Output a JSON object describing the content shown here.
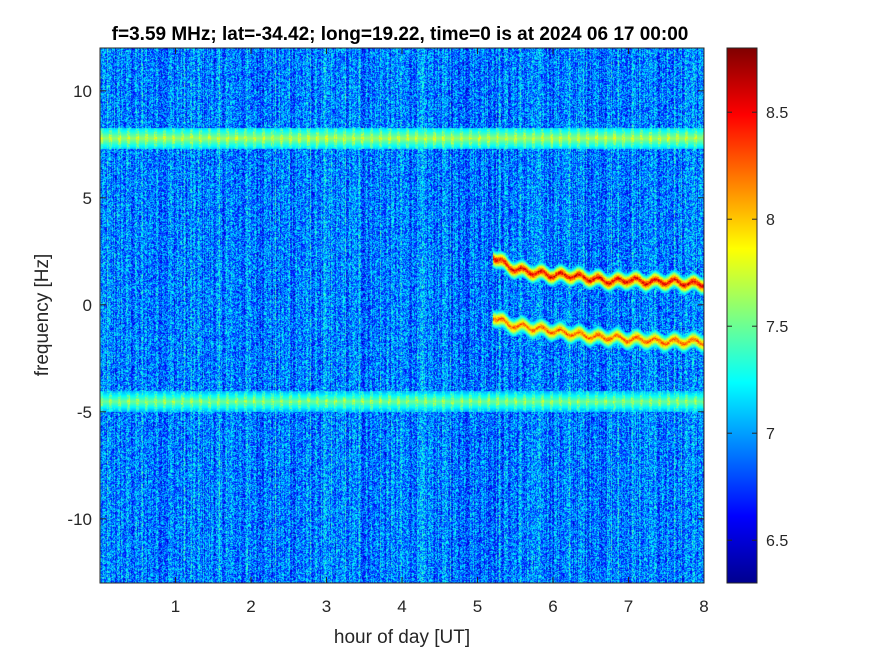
{
  "chart_data": {
    "type": "heatmap",
    "title": "f=3.59 MHz;  lat=-34.42; long=19.22, time=0 is at 2024 06 17 00:00",
    "xlabel": "hour of day [UT]",
    "ylabel": "frequency [Hz]",
    "xlim": [
      0,
      8
    ],
    "ylim": [
      -13,
      12
    ],
    "xticks": [
      1,
      2,
      3,
      4,
      5,
      6,
      7,
      8
    ],
    "xtick_labels": [
      "1",
      "2",
      "3",
      "4",
      "5",
      "6",
      "7",
      "8"
    ],
    "yticks": [
      -10,
      -5,
      0,
      5,
      10
    ],
    "ytick_labels": [
      "-10",
      "-5",
      "0",
      "5",
      "10"
    ],
    "colormap": "jet",
    "colorbar": {
      "range": [
        6.3,
        8.8
      ],
      "ticks": [
        6.5,
        7,
        7.5,
        8,
        8.5
      ],
      "tick_labels": [
        "6.5",
        "7",
        "7.5",
        "8",
        "8.5"
      ]
    },
    "background_level": 6.9,
    "features": [
      {
        "kind": "band",
        "y_center": 7.8,
        "x_range": [
          0,
          8
        ],
        "peak": 7.6
      },
      {
        "kind": "band",
        "y_center": -4.5,
        "x_range": [
          0,
          8
        ],
        "peak": 7.5
      },
      {
        "kind": "trace",
        "x": [
          5.2,
          5.4,
          5.6,
          5.8,
          6.0,
          6.2,
          6.4,
          6.6,
          6.8,
          7.0,
          7.2,
          7.4,
          7.6,
          7.8,
          8.0
        ],
        "y": [
          2.3,
          1.8,
          1.6,
          1.5,
          1.4,
          1.4,
          1.3,
          1.2,
          1.1,
          1.2,
          1.1,
          1.1,
          1.1,
          1.0,
          1.0
        ],
        "peak": 8.8
      },
      {
        "kind": "trace",
        "x": [
          5.2,
          5.4,
          5.6,
          5.8,
          6.0,
          6.2,
          6.4,
          6.6,
          6.8,
          7.0,
          7.2,
          7.4,
          7.6,
          7.8,
          8.0
        ],
        "y": [
          -0.5,
          -0.9,
          -1.0,
          -1.1,
          -1.2,
          -1.3,
          -1.4,
          -1.5,
          -1.5,
          -1.6,
          -1.6,
          -1.7,
          -1.7,
          -1.7,
          -1.7
        ],
        "peak": 8.5
      }
    ]
  }
}
